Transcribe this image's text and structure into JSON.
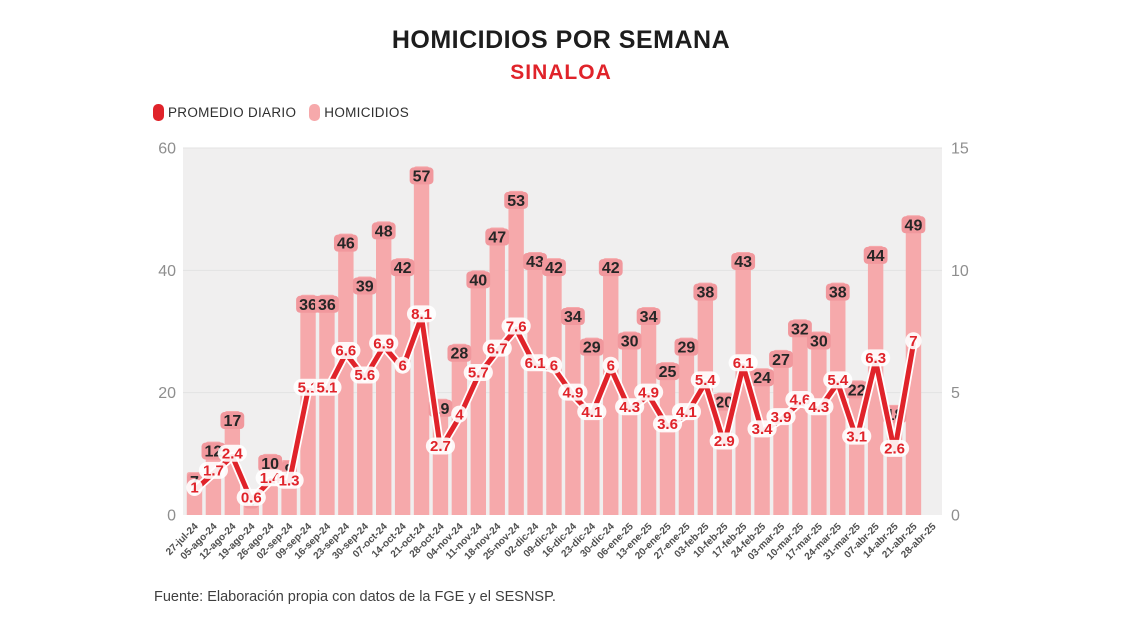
{
  "page": {
    "title": "HOMICIDIOS POR SEMANA",
    "subtitle": "SINALOA",
    "source": "Fuente: Elaboración propia con datos de la FGE y el SESNSP.",
    "colors": {
      "accent": "#e0232a",
      "bar": "#f6a9ab",
      "bar_badge": "#f1989d",
      "plot_bg": "#f0efef",
      "grid": "#e3e3e3"
    }
  },
  "legend": {
    "items": [
      {
        "label": "PROMEDIO DIARIO",
        "color": "#e0232a"
      },
      {
        "label": "HOMICIDIOS",
        "color": "#f6a9ab"
      }
    ]
  },
  "chart_data": {
    "type": "bar",
    "title": "HOMICIDIOS POR SEMANA",
    "subtitle": "SINALOA",
    "categories": [
      "27-jul-24",
      "05-ago-24",
      "12-ago-24",
      "19-ago-24",
      "26-ago-24",
      "02-sep-24",
      "09-sep-24",
      "16-sep-24",
      "23-sep-24",
      "30-sep-24",
      "07-oct-24",
      "14-oct-24",
      "21-oct-24",
      "28-oct-24",
      "04-nov-24",
      "11-nov-24",
      "18-nov-24",
      "25-nov-24",
      "02-dic-24",
      "09-dic-24",
      "16-dic-24",
      "23-dic-24",
      "30-dic-24",
      "06-ene-25",
      "13-ene-25",
      "20-ene-25",
      "27-ene-25",
      "03-feb-25",
      "10-feb-25",
      "17-feb-25",
      "24-feb-25",
      "03-mar-25",
      "10-mar-25",
      "17-mar-25",
      "24-mar-25",
      "31-mar-25",
      "07-abr-25",
      "14-abr-25",
      "21-abr-25",
      "28-abr-25"
    ],
    "series": [
      {
        "name": "HOMICIDIOS",
        "kind": "bar",
        "axis": "left",
        "color": "#f6a9ab",
        "values": [
          7,
          12,
          17,
          4,
          10,
          9,
          36,
          36,
          46,
          39,
          48,
          42,
          57,
          19,
          28,
          40,
          47,
          53,
          43,
          42,
          34,
          29,
          42,
          30,
          34,
          25,
          29,
          38,
          20,
          43,
          24,
          27,
          32,
          30,
          38,
          22,
          44,
          18,
          49,
          null
        ]
      },
      {
        "name": "PROMEDIO DIARIO",
        "kind": "line",
        "axis": "right",
        "color": "#e0232a",
        "values": [
          1,
          1.7,
          2.4,
          0.6,
          1.4,
          1.3,
          5.1,
          5.1,
          6.6,
          5.6,
          6.9,
          6,
          8.1,
          2.7,
          4,
          5.7,
          6.7,
          7.6,
          6.1,
          6,
          4.9,
          4.1,
          6,
          4.3,
          4.9,
          3.6,
          4.1,
          5.4,
          2.9,
          6.1,
          3.4,
          3.9,
          4.6,
          4.3,
          5.4,
          3.1,
          6.3,
          2.6,
          7,
          null
        ]
      }
    ],
    "axis_left": {
      "ticks": [
        0,
        20,
        40,
        60
      ],
      "max": 60
    },
    "axis_right": {
      "ticks": [
        0,
        5,
        10,
        15
      ],
      "max": 15
    },
    "grid": true,
    "legend_position": "top-left"
  }
}
